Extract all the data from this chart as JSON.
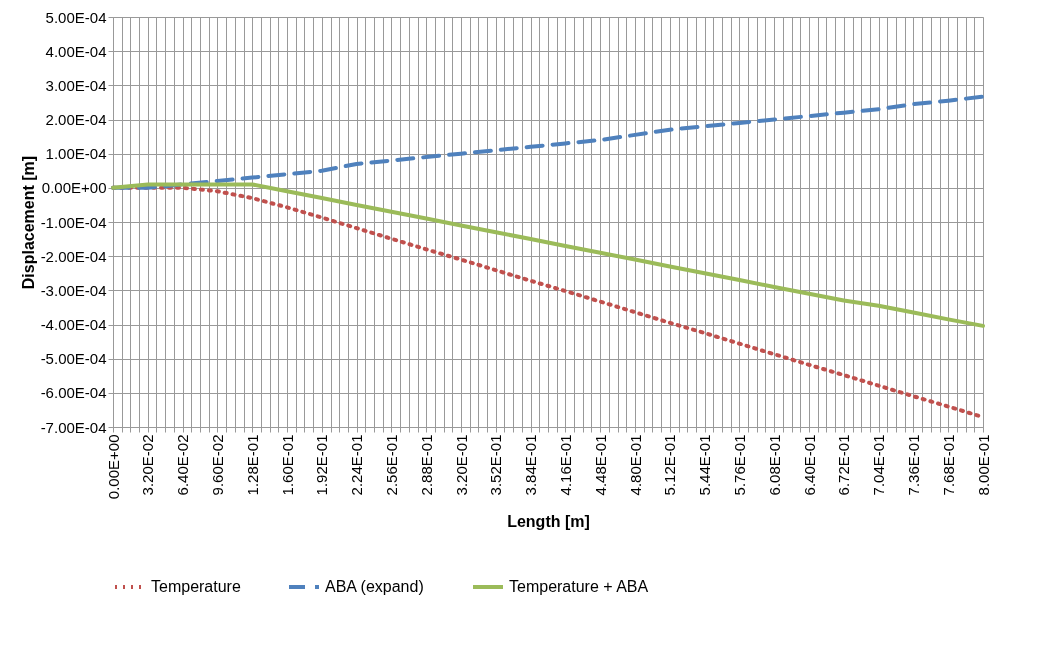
{
  "chart_data": {
    "type": "line",
    "xlabel": "Length [m]",
    "ylabel": "Displacement [m]",
    "grid": true,
    "legend": "bottom",
    "x": [
      0,
      0.032,
      0.064,
      0.096,
      0.128,
      0.16,
      0.192,
      0.224,
      0.256,
      0.288,
      0.32,
      0.352,
      0.384,
      0.416,
      0.448,
      0.48,
      0.512,
      0.544,
      0.576,
      0.608,
      0.64,
      0.672,
      0.704,
      0.736,
      0.768,
      0.8
    ],
    "xlim": [
      0,
      0.8
    ],
    "xticks": [
      {
        "value": 0,
        "label": "0.00E+00"
      },
      {
        "value": 0.008,
        "label": null
      },
      {
        "value": 0.016,
        "label": null
      },
      {
        "value": 0.024,
        "label": null
      },
      {
        "value": 0.032,
        "label": "3.20E-02"
      },
      {
        "value": 0.04,
        "label": null
      },
      {
        "value": 0.048,
        "label": null
      },
      {
        "value": 0.056,
        "label": null
      },
      {
        "value": 0.064,
        "label": "6.40E-02"
      },
      {
        "value": 0.072,
        "label": null
      },
      {
        "value": 0.08,
        "label": null
      },
      {
        "value": 0.088,
        "label": null
      },
      {
        "value": 0.096,
        "label": "9.60E-02"
      },
      {
        "value": 0.104,
        "label": null
      },
      {
        "value": 0.112,
        "label": null
      },
      {
        "value": 0.12,
        "label": null
      },
      {
        "value": 0.128,
        "label": "1.28E-01"
      },
      {
        "value": 0.136,
        "label": null
      },
      {
        "value": 0.144,
        "label": null
      },
      {
        "value": 0.152,
        "label": null
      },
      {
        "value": 0.16,
        "label": "1.60E-01"
      },
      {
        "value": 0.168,
        "label": null
      },
      {
        "value": 0.176,
        "label": null
      },
      {
        "value": 0.184,
        "label": null
      },
      {
        "value": 0.192,
        "label": "1.92E-01"
      },
      {
        "value": 0.2,
        "label": null
      },
      {
        "value": 0.208,
        "label": null
      },
      {
        "value": 0.216,
        "label": null
      },
      {
        "value": 0.224,
        "label": "2.24E-01"
      },
      {
        "value": 0.232,
        "label": null
      },
      {
        "value": 0.24,
        "label": null
      },
      {
        "value": 0.248,
        "label": null
      },
      {
        "value": 0.256,
        "label": "2.56E-01"
      },
      {
        "value": 0.264,
        "label": null
      },
      {
        "value": 0.272,
        "label": null
      },
      {
        "value": 0.28,
        "label": null
      },
      {
        "value": 0.288,
        "label": "2.88E-01"
      },
      {
        "value": 0.296,
        "label": null
      },
      {
        "value": 0.304,
        "label": null
      },
      {
        "value": 0.312,
        "label": null
      },
      {
        "value": 0.32,
        "label": "3.20E-01"
      },
      {
        "value": 0.328,
        "label": null
      },
      {
        "value": 0.336,
        "label": null
      },
      {
        "value": 0.344,
        "label": null
      },
      {
        "value": 0.352,
        "label": "3.52E-01"
      },
      {
        "value": 0.36,
        "label": null
      },
      {
        "value": 0.368,
        "label": null
      },
      {
        "value": 0.376,
        "label": null
      },
      {
        "value": 0.384,
        "label": "3.84E-01"
      },
      {
        "value": 0.392,
        "label": null
      },
      {
        "value": 0.4,
        "label": null
      },
      {
        "value": 0.408,
        "label": null
      },
      {
        "value": 0.416,
        "label": "4.16E-01"
      },
      {
        "value": 0.424,
        "label": null
      },
      {
        "value": 0.432,
        "label": null
      },
      {
        "value": 0.44,
        "label": null
      },
      {
        "value": 0.448,
        "label": "4.48E-01"
      },
      {
        "value": 0.456,
        "label": null
      },
      {
        "value": 0.464,
        "label": null
      },
      {
        "value": 0.472,
        "label": null
      },
      {
        "value": 0.48,
        "label": "4.80E-01"
      },
      {
        "value": 0.488,
        "label": null
      },
      {
        "value": 0.496,
        "label": null
      },
      {
        "value": 0.504,
        "label": null
      },
      {
        "value": 0.512,
        "label": "5.12E-01"
      },
      {
        "value": 0.52,
        "label": null
      },
      {
        "value": 0.528,
        "label": null
      },
      {
        "value": 0.536,
        "label": null
      },
      {
        "value": 0.544,
        "label": "5.44E-01"
      },
      {
        "value": 0.552,
        "label": null
      },
      {
        "value": 0.56,
        "label": null
      },
      {
        "value": 0.568,
        "label": null
      },
      {
        "value": 0.576,
        "label": "5.76E-01"
      },
      {
        "value": 0.584,
        "label": null
      },
      {
        "value": 0.592,
        "label": null
      },
      {
        "value": 0.6,
        "label": null
      },
      {
        "value": 0.608,
        "label": "6.08E-01"
      },
      {
        "value": 0.616,
        "label": null
      },
      {
        "value": 0.624,
        "label": null
      },
      {
        "value": 0.632,
        "label": null
      },
      {
        "value": 0.64,
        "label": "6.40E-01"
      },
      {
        "value": 0.648,
        "label": null
      },
      {
        "value": 0.656,
        "label": null
      },
      {
        "value": 0.664,
        "label": null
      },
      {
        "value": 0.672,
        "label": "6.72E-01"
      },
      {
        "value": 0.68,
        "label": null
      },
      {
        "value": 0.688,
        "label": null
      },
      {
        "value": 0.696,
        "label": null
      },
      {
        "value": 0.704,
        "label": "7.04E-01"
      },
      {
        "value": 0.712,
        "label": null
      },
      {
        "value": 0.72,
        "label": null
      },
      {
        "value": 0.728,
        "label": null
      },
      {
        "value": 0.736,
        "label": "7.36E-01"
      },
      {
        "value": 0.744,
        "label": null
      },
      {
        "value": 0.752,
        "label": null
      },
      {
        "value": 0.76,
        "label": null
      },
      {
        "value": 0.768,
        "label": "7.68E-01"
      },
      {
        "value": 0.776,
        "label": null
      },
      {
        "value": 0.784,
        "label": null
      },
      {
        "value": 0.792,
        "label": null
      },
      {
        "value": 0.8,
        "label": "8.00E-01"
      }
    ],
    "ylim": [
      -0.0007,
      0.0005
    ],
    "yticks": [
      {
        "value": -0.0007,
        "label": "-7.00E-04"
      },
      {
        "value": -0.0006,
        "label": "-6.00E-04"
      },
      {
        "value": -0.0005,
        "label": "-5.00E-04"
      },
      {
        "value": -0.0004,
        "label": "-4.00E-04"
      },
      {
        "value": -0.0003,
        "label": "-3.00E-04"
      },
      {
        "value": -0.0002,
        "label": "-2.00E-04"
      },
      {
        "value": -0.0001,
        "label": "-1.00E-04"
      },
      {
        "value": 0,
        "label": "0.00E+00"
      },
      {
        "value": 0.0001,
        "label": "1.00E-04"
      },
      {
        "value": 0.0002,
        "label": "2.00E-04"
      },
      {
        "value": 0.0003,
        "label": "3.00E-04"
      },
      {
        "value": 0.0004,
        "label": "4.00E-04"
      },
      {
        "value": 0.0005,
        "label": "5.00E-04"
      }
    ],
    "series": [
      {
        "name": "Temperature",
        "color": "#c0504d",
        "line_style": "dotted",
        "values": [
          0,
          0,
          0,
          -1e-05,
          -3e-05,
          -5.7e-05,
          -8.7e-05,
          -0.000118,
          -0.000149,
          -0.00018,
          -0.00021,
          -0.000241,
          -0.000272,
          -0.000302,
          -0.000333,
          -0.000364,
          -0.000395,
          -0.000425,
          -0.000456,
          -0.000487,
          -0.000518,
          -0.000548,
          -0.000579,
          -0.00061,
          -0.00064,
          -0.000671
        ]
      },
      {
        "name": "ABA (expand)",
        "color": "#4f81bd",
        "line_style": "dashed",
        "values": [
          0,
          0,
          1e-05,
          2e-05,
          3e-05,
          4e-05,
          5e-05,
          7e-05,
          8e-05,
          9e-05,
          0.0001,
          0.00011,
          0.00012,
          0.00013,
          0.00014,
          0.000155,
          0.00017,
          0.00018,
          0.00019,
          0.0002,
          0.00021,
          0.00022,
          0.00023,
          0.000245,
          0.000255,
          0.000267
        ]
      },
      {
        "name": "Temperature + ABA",
        "color": "#9bbb59",
        "line_style": "solid",
        "values": [
          0,
          1e-05,
          1e-05,
          1e-05,
          1e-05,
          -1e-05,
          -3e-05,
          -5e-05,
          -7e-05,
          -9e-05,
          -0.00011,
          -0.00013,
          -0.00015,
          -0.00017,
          -0.00019,
          -0.00021,
          -0.00023,
          -0.00025,
          -0.00027,
          -0.00029,
          -0.00031,
          -0.00033,
          -0.000345,
          -0.000365,
          -0.000385,
          -0.000404
        ]
      }
    ]
  }
}
